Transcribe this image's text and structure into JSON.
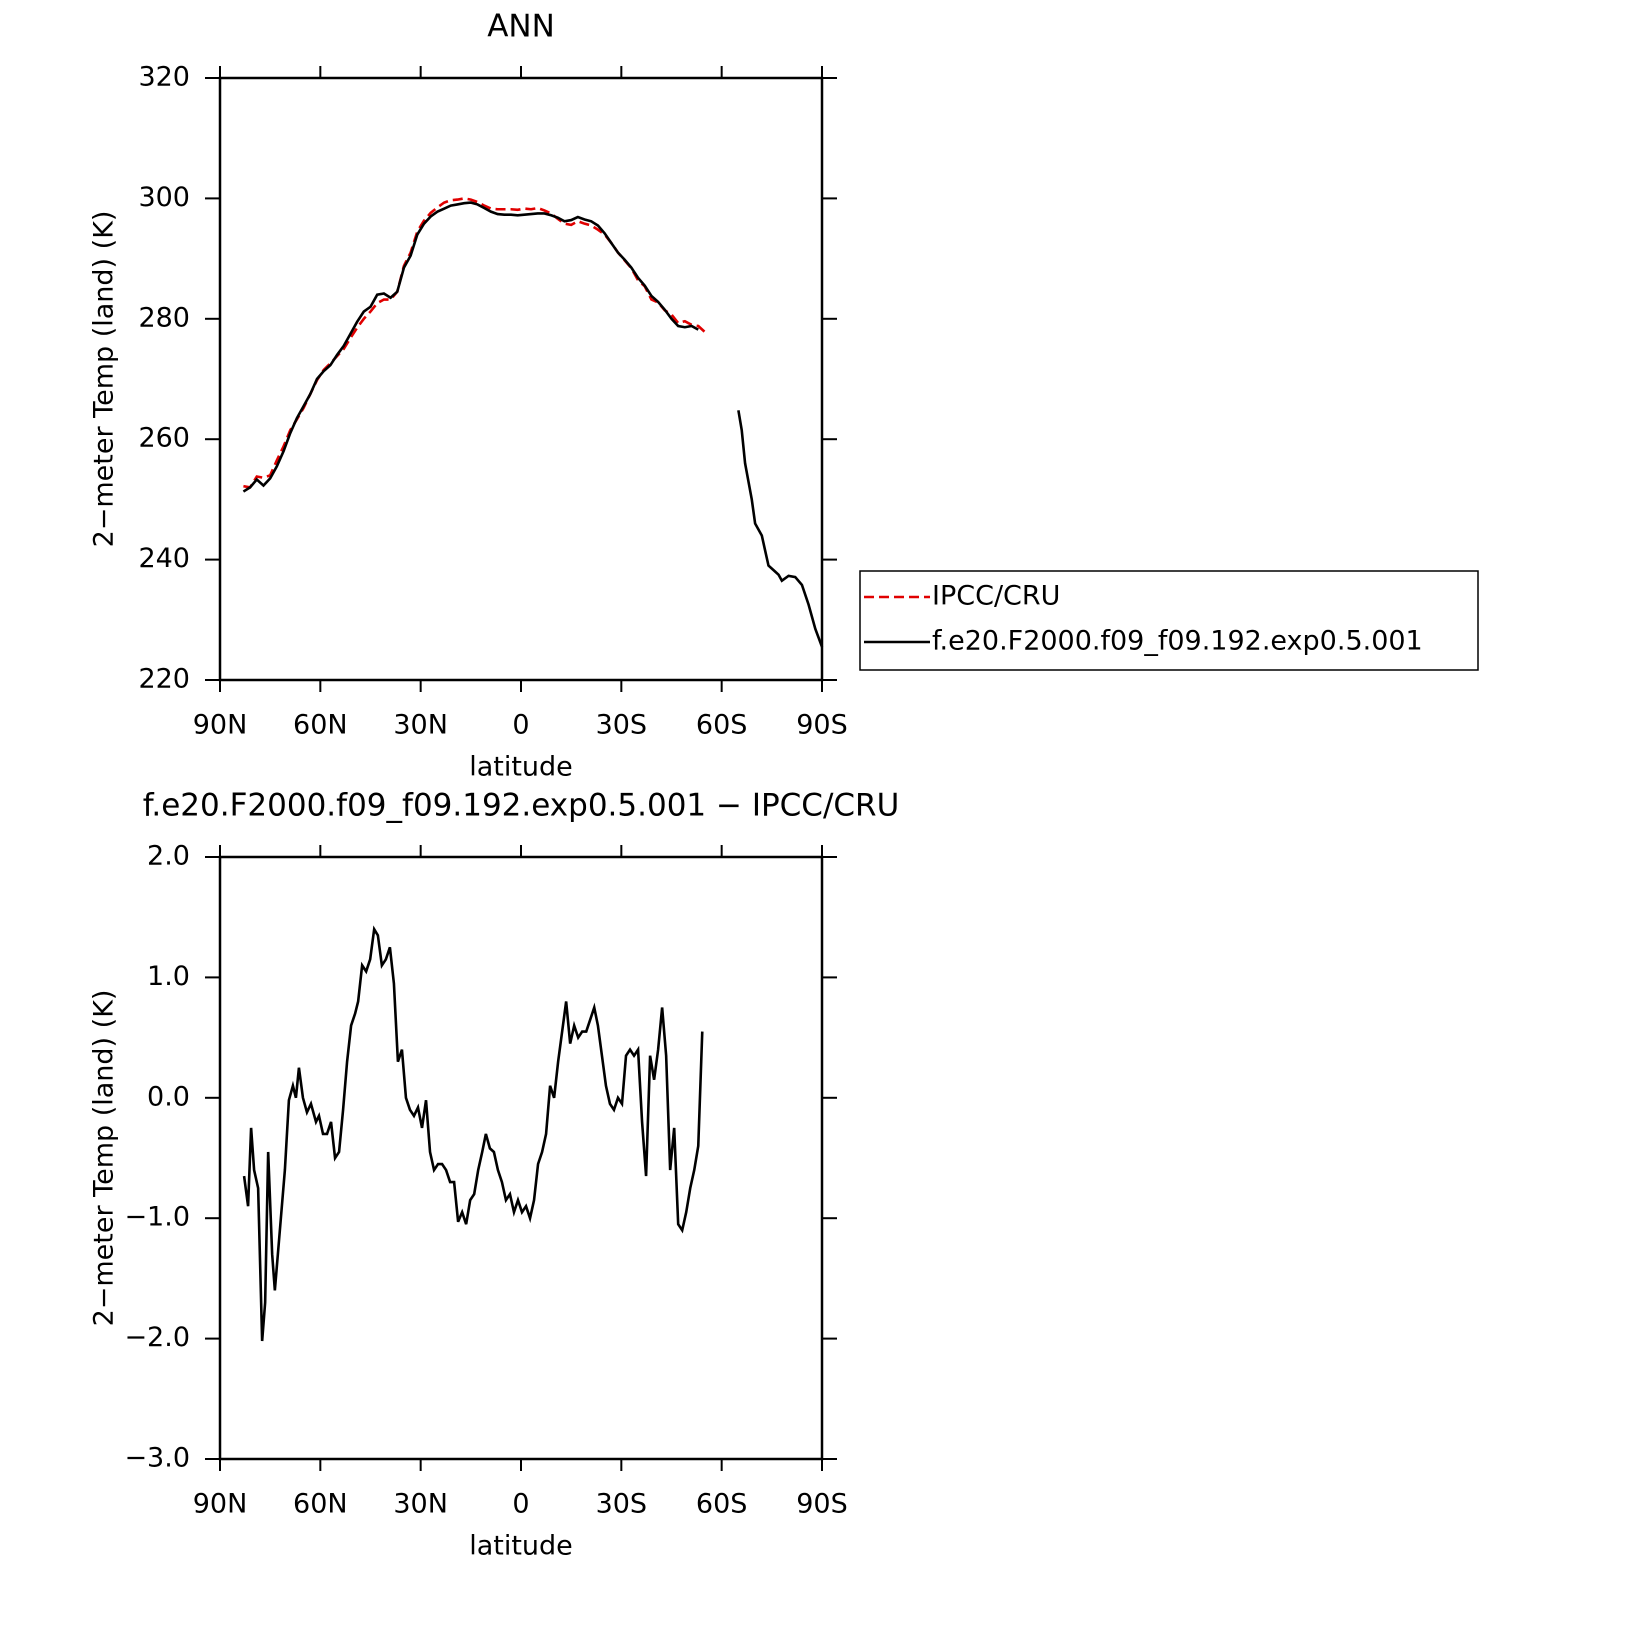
{
  "chart_data": [
    {
      "type": "line",
      "title": "ANN",
      "xlabel": "latitude",
      "ylabel": "2−meter Temp (land) (K)",
      "xlim": [
        90,
        -90
      ],
      "ylim": [
        220,
        320
      ],
      "xticks": [
        {
          "value": 90,
          "label": "90N"
        },
        {
          "value": 60,
          "label": "60N"
        },
        {
          "value": 30,
          "label": "30N"
        },
        0,
        {
          "value": -30,
          "label": "30S"
        },
        {
          "value": -60,
          "label": "60S"
        },
        {
          "value": -90,
          "label": "90S"
        }
      ],
      "yticks": [
        220,
        240,
        260,
        280,
        300,
        320
      ],
      "legend": "right",
      "x": [
        83,
        81,
        79,
        77,
        75,
        73,
        71,
        69,
        67,
        65,
        63,
        61,
        59,
        57,
        55,
        53,
        51,
        49,
        47,
        45,
        43,
        41,
        39,
        37,
        35,
        33,
        31,
        29,
        27,
        25,
        23,
        21,
        19,
        17,
        15,
        13,
        11,
        9,
        7,
        5,
        3,
        1,
        -1,
        -3,
        -5,
        -7,
        -9,
        -11,
        -13,
        -15,
        -17,
        -19,
        -21,
        -23,
        -25,
        -27,
        -29,
        -31,
        -33,
        -35,
        -37,
        -39,
        -41,
        -43,
        -45,
        -47,
        -49,
        -51,
        -53,
        -55,
        -60,
        -65,
        -66,
        -67,
        -69,
        -70,
        -72,
        -73,
        -74,
        -76,
        -77,
        -78,
        -80,
        -82,
        -84,
        -86,
        -88,
        -90
      ],
      "series": [
        {
          "name": "IPCC/CRU",
          "color": "#e00000",
          "dash": true,
          "values": [
            252.2,
            252,
            253.8,
            253.6,
            254,
            256.5,
            258.8,
            261.5,
            263.3,
            265.2,
            267.5,
            269.8,
            271.5,
            272.6,
            273.8,
            275,
            276.8,
            278.5,
            280,
            281.2,
            282.6,
            283.2,
            283.2,
            284.5,
            288.8,
            291,
            294.5,
            296.3,
            297.6,
            298.5,
            299.3,
            299.7,
            299.8,
            300,
            299.8,
            299.4,
            298.8,
            298.3,
            298.2,
            298.2,
            298.2,
            298.1,
            298.3,
            298.2,
            298.4,
            298,
            297.5,
            296.6,
            295.8,
            295.6,
            296.2,
            295.8,
            295.5,
            294.8,
            294,
            292.6,
            291,
            289.7,
            288.4,
            286.4,
            285.4,
            283.2,
            282.7,
            281.4,
            280.7,
            279.3,
            279.6,
            279,
            278.8,
            277.8,
            null,
            null,
            null,
            null,
            null,
            null,
            null,
            null,
            null,
            null,
            null,
            null,
            null,
            null,
            null,
            null,
            null,
            null
          ]
        },
        {
          "name": "f.e20.F2000.f09_f09.192.exp0.5.001",
          "color": "#000000",
          "dash": false,
          "values": [
            251.3,
            252,
            253.3,
            252.3,
            253.5,
            255.5,
            258,
            261,
            263.5,
            265.5,
            267.5,
            270,
            271.3,
            272.3,
            274,
            275.5,
            277.5,
            279.5,
            281.2,
            282,
            284,
            284.2,
            283.5,
            284.5,
            288.5,
            290.5,
            294,
            295.8,
            297,
            297.8,
            298.3,
            298.8,
            299,
            299.2,
            299.3,
            299,
            298.4,
            297.8,
            297.4,
            297.3,
            297.3,
            297.2,
            297.3,
            297.4,
            297.5,
            297.5,
            297.2,
            296.8,
            296.2,
            296.4,
            296.9,
            296.5,
            296.2,
            295.5,
            294.2,
            292.6,
            291,
            289.8,
            288.5,
            286.8,
            285.5,
            283.8,
            282.8,
            281.5,
            280,
            278.8,
            278.6,
            278.8,
            278.2,
            null,
            null,
            264.8,
            261.5,
            256,
            250,
            246,
            244,
            241.5,
            239,
            238,
            237.5,
            236.5,
            237.3,
            237.1,
            235.8,
            232.5,
            228.5,
            225.5
          ]
        }
      ]
    },
    {
      "type": "line",
      "title": "f.e20.F2000.f09_f09.192.exp0.5.001 − IPCC/CRU",
      "xlabel": "latitude",
      "ylabel": "2−meter Temp (land) (K)",
      "xlim": [
        90,
        -90
      ],
      "ylim": [
        -3,
        2
      ],
      "xticks": [
        {
          "value": 90,
          "label": "90N"
        },
        {
          "value": 60,
          "label": "60N"
        },
        {
          "value": 30,
          "label": "30N"
        },
        0,
        {
          "value": -30,
          "label": "30S"
        },
        {
          "value": -60,
          "label": "60S"
        },
        {
          "value": -90,
          "label": "90S"
        }
      ],
      "yticks": [
        {
          "value": -3,
          "label": "−3.0"
        },
        {
          "value": -2,
          "label": "−2.0"
        },
        {
          "value": -1,
          "label": "−1.0"
        },
        {
          "value": 0,
          "label": "0.0"
        },
        {
          "value": 1,
          "label": "1.0"
        },
        {
          "value": 2,
          "label": "2.0"
        }
      ],
      "color": "#000000",
      "x": [
        82.8,
        81.6,
        80.7,
        79.8,
        78.6,
        77.4,
        76.5,
        75.6,
        74.4,
        73.6,
        72.7,
        71.8,
        70.6,
        69.4,
        68.2,
        67.3,
        66.4,
        65.2,
        64.0,
        62.8,
        61.3,
        60.4,
        59.2,
        58.0,
        56.8,
        55.6,
        54.4,
        53.2,
        52.0,
        50.8,
        49.6,
        48.7,
        47.5,
        46.3,
        45.1,
        43.9,
        42.8,
        41.6,
        40.4,
        39.2,
        38.0,
        36.8,
        35.6,
        34.4,
        33.2,
        32.0,
        30.8,
        29.6,
        28.4,
        27.2,
        26.0,
        24.8,
        23.6,
        22.4,
        21.2,
        20.0,
        18.8,
        17.6,
        16.4,
        15.2,
        14.0,
        12.8,
        11.6,
        10.5,
        9.3,
        8.1,
        6.9,
        5.7,
        4.5,
        3.3,
        2.1,
        0.9,
        -0.3,
        -1.5,
        -2.7,
        -3.9,
        -5.1,
        -6.3,
        -7.5,
        -8.7,
        -9.9,
        -11.1,
        -12.3,
        -13.5,
        -14.7,
        -15.9,
        -17.1,
        -18.3,
        -19.5,
        -20.7,
        -21.9,
        -23.0,
        -24.2,
        -25.4,
        -26.6,
        -27.8,
        -29.0,
        -30.2,
        -31.4,
        -32.6,
        -33.8,
        -35.0,
        -36.2,
        -37.4,
        -38.6,
        -39.8,
        -41.0,
        -42.2,
        -43.4,
        -44.6,
        -45.8,
        -47.0,
        -48.2,
        -49.4,
        -50.6,
        -51.8,
        -53.0,
        -54.2
      ],
      "values": [
        -0.65,
        -0.9,
        -0.25,
        -0.6,
        -0.75,
        -2.02,
        -1.7,
        -0.45,
        -1.3,
        -1.6,
        -1.3,
        -1.0,
        -0.6,
        -0.02,
        0.1,
        0.0,
        0.25,
        0.0,
        -0.12,
        -0.05,
        -0.2,
        -0.15,
        -0.3,
        -0.3,
        -0.2,
        -0.5,
        -0.45,
        -0.1,
        0.3,
        0.6,
        0.7,
        0.8,
        1.1,
        1.05,
        1.15,
        1.4,
        1.35,
        1.1,
        1.15,
        1.25,
        0.95,
        0.3,
        0.4,
        0.0,
        -0.1,
        -0.15,
        -0.08,
        -0.25,
        -0.02,
        -0.45,
        -0.6,
        -0.55,
        -0.55,
        -0.6,
        -0.7,
        -0.7,
        -1.03,
        -0.95,
        -1.05,
        -0.85,
        -0.8,
        -0.6,
        -0.45,
        -0.3,
        -0.42,
        -0.45,
        -0.6,
        -0.7,
        -0.85,
        -0.8,
        -0.95,
        -0.85,
        -0.95,
        -0.9,
        -1.0,
        -0.85,
        -0.55,
        -0.45,
        -0.3,
        0.1,
        0.0,
        0.3,
        0.55,
        0.8,
        0.45,
        0.6,
        0.5,
        0.55,
        0.55,
        0.65,
        0.75,
        0.6,
        0.35,
        0.1,
        -0.05,
        -0.1,
        0.0,
        -0.05,
        0.35,
        0.4,
        0.35,
        0.4,
        -0.2,
        -0.65,
        0.35,
        0.15,
        0.4,
        0.75,
        0.35,
        -0.6,
        -0.25,
        -1.05,
        -1.1,
        -0.95,
        -0.75,
        -0.6,
        -0.4,
        0.55
      ]
    }
  ]
}
